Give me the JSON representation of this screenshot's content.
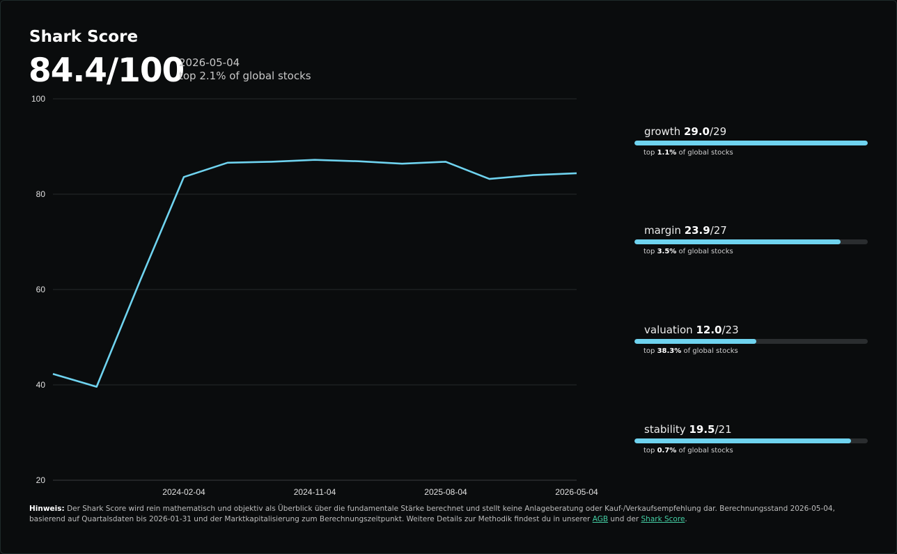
{
  "header": {
    "title": "Shark Score",
    "score": "84.4/100",
    "date": "2026-05-04",
    "rank": "top 2.1% of global stocks"
  },
  "components": [
    {
      "name": "growth",
      "value": "29.0",
      "max": "/29",
      "fraction": 1.0,
      "top_prefix": "top ",
      "top": "1.1%",
      "top_suffix": " of global stocks"
    },
    {
      "name": "margin",
      "value": "23.9",
      "max": "/27",
      "fraction": 0.885,
      "top_prefix": "top ",
      "top": "3.5%",
      "top_suffix": " of global stocks"
    },
    {
      "name": "valuation",
      "value": "12.0",
      "max": "/23",
      "fraction": 0.522,
      "top_prefix": "top ",
      "top": "38.3%",
      "top_suffix": " of global stocks"
    },
    {
      "name": "stability",
      "value": "19.5",
      "max": "/21",
      "fraction": 0.929,
      "top_prefix": "top ",
      "top": "0.7%",
      "top_suffix": " of global stocks"
    }
  ],
  "chart_data": {
    "type": "line",
    "x": [
      "2023-05-04",
      "2023-08-04",
      "2023-11-04",
      "2024-02-04",
      "2024-05-04",
      "2024-08-04",
      "2024-11-04",
      "2025-02-04",
      "2025-05-04",
      "2025-08-04",
      "2025-11-04",
      "2026-02-04",
      "2026-05-04"
    ],
    "y": [
      42.3,
      39.6,
      61.9,
      83.6,
      86.6,
      86.8,
      87.2,
      86.9,
      86.4,
      86.8,
      83.2,
      84.0,
      84.4
    ],
    "xticks": [
      "2024-02-04",
      "2024-11-04",
      "2025-08-04",
      "2026-05-04"
    ],
    "yticks": [
      20,
      40,
      60,
      80,
      100
    ],
    "ylim": [
      20,
      100
    ],
    "grid": true,
    "color": "#6fd3ef"
  },
  "footer": {
    "label": "Hinweis:",
    "text1": " Der Shark Score wird rein mathematisch und objektiv als Überblick über die fundamentale Stärke berechnet und stellt keine Anlageberatung oder Kauf-/Verkaufsempfehlung dar. Berechnungsstand 2026-05-04, basierend auf Quartalsdaten bis 2026-01-31 und der Marktkapitalisierung zum Berechnungszeitpunkt. Weitere Details zur Methodik findest du in unserer ",
    "link1": "AGB",
    "text2": " und der ",
    "link2": "Shark Score",
    "text3": "."
  }
}
